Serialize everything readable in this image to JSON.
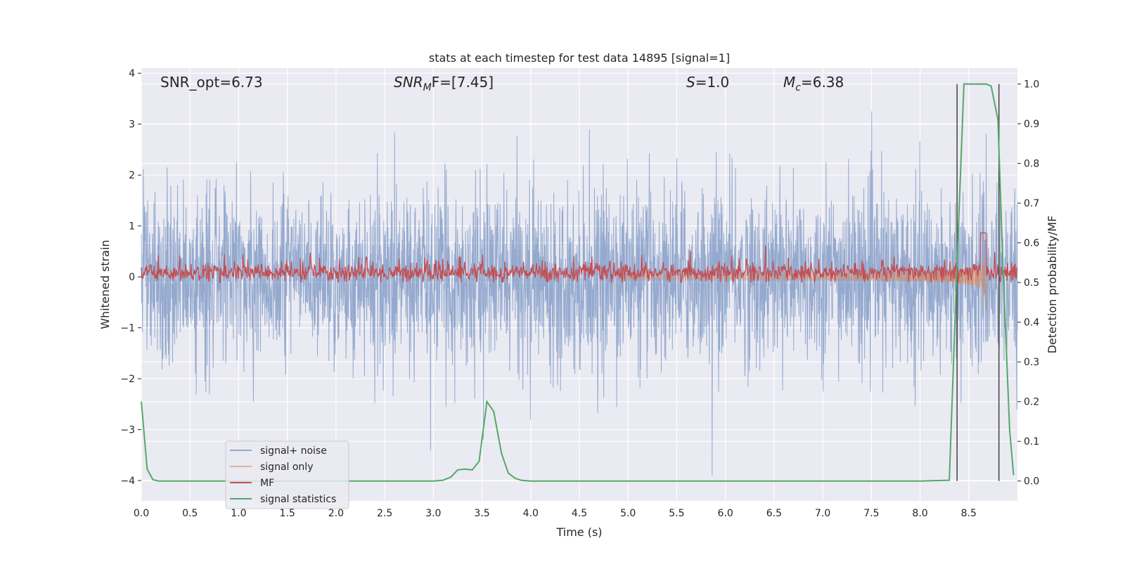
{
  "chart_data": {
    "type": "line",
    "title": "stats at each timestep for test data 14895 [signal=1]",
    "xlabel": "Time (s)",
    "ylabel_left": "Whitened strain",
    "ylabel_right": "Detection probability/MF",
    "xlim": [
      0.0,
      9.0
    ],
    "ylim_left": [
      -4.4,
      4.1
    ],
    "ylim_right": [
      -0.05,
      1.04
    ],
    "x_ticks": [
      "0.0",
      "0.5",
      "1.0",
      "1.5",
      "2.0",
      "2.5",
      "3.0",
      "3.5",
      "4.0",
      "4.5",
      "5.0",
      "5.5",
      "6.0",
      "6.5",
      "7.0",
      "7.5",
      "8.0",
      "8.5"
    ],
    "y_ticks_left": [
      "4",
      "3",
      "2",
      "1",
      "0",
      "−1",
      "−2",
      "−3",
      "−4"
    ],
    "y_ticks_right": [
      "1.0",
      "0.9",
      "0.8",
      "0.7",
      "0.6",
      "0.5",
      "0.4",
      "0.3",
      "0.2",
      "0.1",
      "0.0"
    ],
    "grid": true,
    "legend_position": "lower-left",
    "annotations": [
      {
        "text": "SNR_opt=6.73",
        "kind": "plain"
      },
      {
        "base": "SNR",
        "sub": "M",
        "rest": "F=[7.45]",
        "kind": "italic-sub"
      },
      {
        "base": "S",
        "rest": "=1.0",
        "kind": "italic"
      },
      {
        "base": "M",
        "sub": "c",
        "rest": "=6.38",
        "kind": "italic-sub"
      }
    ],
    "series": [
      {
        "name": "signal+ noise",
        "color": "#4c72b0",
        "axis": "left",
        "description": "noise band roughly ±1.4 with spikes up to ±3.7"
      },
      {
        "name": "signal only",
        "color": "#dd8452",
        "axis": "left",
        "description": "chirp growing from ~5.0 s, peaking near 8.65 s"
      },
      {
        "name": "MF",
        "color": "#c44e52",
        "axis": "right",
        "description": "fluctuates around 0.53, spike to 0.63 near 8.65 s"
      },
      {
        "name": "signal statistics",
        "color": "#55a868",
        "axis": "right",
        "x": [
          0.0,
          0.06,
          0.12,
          0.18,
          0.3,
          1.0,
          2.0,
          3.0,
          3.1,
          3.18,
          3.25,
          3.32,
          3.4,
          3.47,
          3.55,
          3.62,
          3.7,
          3.77,
          3.84,
          3.9,
          4.0,
          5.0,
          6.0,
          7.0,
          8.0,
          8.3,
          8.38,
          8.45,
          8.52,
          8.6,
          8.68,
          8.73,
          8.8,
          8.85,
          8.92,
          8.96
        ],
        "values": [
          0.2,
          0.03,
          0.003,
          0.0,
          0.0,
          0.0,
          0.0,
          0.0,
          0.002,
          0.01,
          0.028,
          0.03,
          0.028,
          0.05,
          0.2,
          0.175,
          0.07,
          0.02,
          0.007,
          0.002,
          0.0,
          0.0,
          0.0,
          0.0,
          0.0,
          0.002,
          0.55,
          1.0,
          1.0,
          1.0,
          1.0,
          0.995,
          0.91,
          0.55,
          0.13,
          0.015
        ]
      }
    ],
    "vertical_markers_x": [
      8.38,
      8.81
    ]
  }
}
